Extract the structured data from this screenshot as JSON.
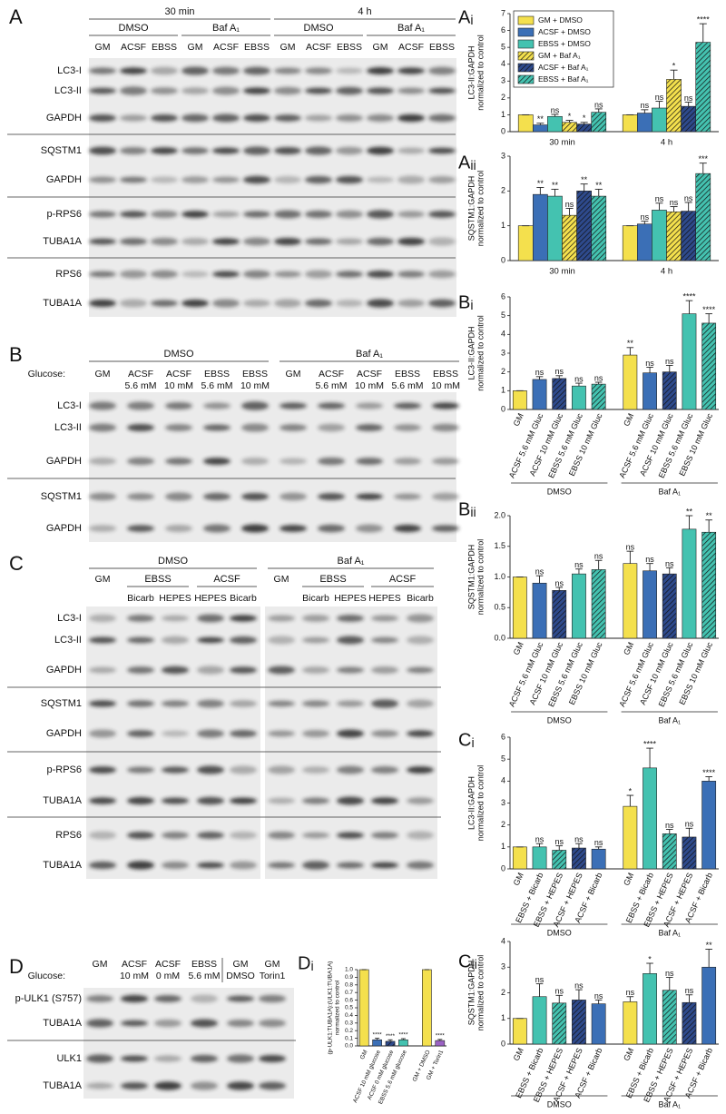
{
  "blots": {
    "A": {
      "letter": "A",
      "time": [
        "30 min",
        "4 h"
      ],
      "treatment": [
        "DMSO",
        "Baf A₁",
        "DMSO",
        "Baf A₁"
      ],
      "lanes": [
        "GM",
        "ACSF",
        "EBSS",
        "GM",
        "ACSF",
        "EBSS",
        "GM",
        "ACSF",
        "EBSS",
        "GM",
        "ACSF",
        "EBSS"
      ],
      "rows": [
        "LC3-I",
        "LC3-II",
        "GAPDH",
        "SQSTM1",
        "GAPDH",
        "p-RPS6",
        "TUBA1A",
        "RPS6",
        "TUBA1A"
      ]
    },
    "B": {
      "letter": "B",
      "treatment": [
        "DMSO",
        "Baf A₁"
      ],
      "glucose": "Glucose:",
      "lanes": [
        [
          "GM"
        ],
        [
          "ACSF",
          "5.6 mM"
        ],
        [
          "ACSF",
          "10 mM"
        ],
        [
          "EBSS",
          "5.6 mM"
        ],
        [
          "EBSS",
          "10 mM"
        ],
        [
          "GM"
        ],
        [
          "ACSF",
          "5.6 mM"
        ],
        [
          "ACSF",
          "10 mM"
        ],
        [
          "EBSS",
          "5.6 mM"
        ],
        [
          "EBSS",
          "10 mM"
        ]
      ],
      "rows": [
        "LC3-I",
        "LC3-II",
        "GAPDH",
        "SQSTM1",
        "GAPDH"
      ]
    },
    "C": {
      "letter": "C",
      "treatment": [
        "DMSO",
        "Baf A₁"
      ],
      "medium": [
        "EBSS",
        "ACSF",
        "EBSS",
        "ACSF"
      ],
      "lanes": [
        "GM",
        "Bicarb",
        "HEPES",
        "HEPES",
        "Bicarb",
        "GM",
        "Bicarb",
        "HEPES",
        "HEPES",
        "Bicarb"
      ],
      "rows": [
        "LC3-I",
        "LC3-II",
        "GAPDH",
        "SQSTM1",
        "GAPDH",
        "p-RPS6",
        "TUBA1A",
        "RPS6",
        "TUBA1A"
      ]
    },
    "D": {
      "letter": "D",
      "glucose": "Glucose:",
      "lanes": [
        [
          "GM"
        ],
        [
          "ACSF",
          "10 mM"
        ],
        [
          "ACSF",
          "0 mM"
        ],
        [
          "EBSS",
          "5.6 mM"
        ],
        [
          "GM",
          "DMSO"
        ],
        [
          "GM",
          "Torin1"
        ]
      ],
      "rows": [
        "p-ULK1 (S757)",
        "TUBA1A",
        "ULK1",
        "TUBA1A"
      ]
    }
  },
  "chart_data": [
    {
      "type": "grouped_bar",
      "title": "Aᵢ",
      "ylabel": [
        "LC3-II:GAPDH",
        "normalized to control"
      ],
      "ylim": [
        0,
        7
      ],
      "yticks": [
        0,
        1,
        2,
        3,
        4,
        5,
        6,
        7
      ],
      "legend": "top-left",
      "categories": [
        "30 min",
        "4 h"
      ],
      "series": [
        {
          "name": "GM + DMSO",
          "color": "#f4e04d",
          "hatched": false,
          "values": [
            1,
            1
          ],
          "errors": [
            0,
            0
          ],
          "significance": [
            null,
            null
          ]
        },
        {
          "name": "ACSF + DMSO",
          "color": "#3b6fb6",
          "hatched": false,
          "values": [
            0.4,
            1.1
          ],
          "errors": [
            0.1,
            0.2
          ],
          "significance": [
            "**",
            "ns"
          ]
        },
        {
          "name": "EBSS + DMSO",
          "color": "#44c2b0",
          "hatched": false,
          "values": [
            0.9,
            1.4
          ],
          "errors": [
            0.12,
            0.4
          ],
          "significance": [
            "ns",
            "ns"
          ]
        },
        {
          "name": "GM + Baf A₁",
          "color": "#f4e04d",
          "hatched": true,
          "values": [
            0.55,
            3.1
          ],
          "errors": [
            0.12,
            0.55
          ],
          "significance": [
            "*",
            "*"
          ]
        },
        {
          "name": "ACSF + Baf A₁",
          "color": "#2e4a8c",
          "hatched": true,
          "values": [
            0.45,
            1.5
          ],
          "errors": [
            0.1,
            0.25
          ],
          "significance": [
            "*",
            "ns"
          ]
        },
        {
          "name": "EBSS + Baf A₁",
          "color": "#44c2b0",
          "hatched": true,
          "values": [
            1.15,
            5.3
          ],
          "errors": [
            0.2,
            1.1
          ],
          "significance": [
            "ns",
            "****"
          ]
        }
      ]
    },
    {
      "type": "grouped_bar",
      "title": "Aᵢᵢ",
      "ylabel": [
        "SQSTM1:GAPDH",
        "normalized to control"
      ],
      "ylim": [
        0,
        3
      ],
      "yticks": [
        0,
        1,
        2,
        3
      ],
      "categories": [
        "30 min",
        "4 h"
      ],
      "series": [
        {
          "color": "#f4e04d",
          "hatched": false,
          "values": [
            1,
            1
          ],
          "errors": [
            0,
            0
          ],
          "significance": [
            null,
            null
          ]
        },
        {
          "color": "#3b6fb6",
          "hatched": false,
          "values": [
            1.9,
            1.05
          ],
          "errors": [
            0.2,
            0.08
          ],
          "significance": [
            "**",
            "ns"
          ]
        },
        {
          "color": "#44c2b0",
          "hatched": false,
          "values": [
            1.85,
            1.45
          ],
          "errors": [
            0.2,
            0.2
          ],
          "significance": [
            "**",
            "ns"
          ]
        },
        {
          "color": "#f4e04d",
          "hatched": true,
          "values": [
            1.3,
            1.4
          ],
          "errors": [
            0.2,
            0.15
          ],
          "significance": [
            "ns",
            "ns"
          ]
        },
        {
          "color": "#2e4a8c",
          "hatched": true,
          "values": [
            2.0,
            1.42
          ],
          "errors": [
            0.2,
            0.25
          ],
          "significance": [
            "**",
            "ns"
          ]
        },
        {
          "color": "#44c2b0",
          "hatched": true,
          "values": [
            1.85,
            2.5
          ],
          "errors": [
            0.2,
            0.3
          ],
          "significance": [
            "**",
            "***"
          ]
        }
      ]
    },
    {
      "type": "bar",
      "title": "Bᵢ",
      "ylabel": [
        "LC3-II:GAPDH",
        "normalized to control"
      ],
      "ylim": [
        0,
        6
      ],
      "yticks": [
        0,
        1,
        2,
        3,
        4,
        5,
        6
      ],
      "groups": [
        "DMSO",
        "Baf A₁"
      ],
      "categories": [
        "GM",
        "ACSF 5.6 mM Gluc",
        "ACSF 10 mM Gluc",
        "EBSS 5.6 mM Gluc",
        "EBSS 10 mM Gluc",
        "GM",
        "ACSF 5.6 mM Gluc",
        "ACSF 10 mM Gluc",
        "EBSS 5.6 mM Gluc",
        "EBSS 10 mM Gluc"
      ],
      "values": [
        1,
        1.6,
        1.65,
        1.25,
        1.35,
        2.9,
        1.95,
        2.0,
        5.1,
        4.6
      ],
      "errors": [
        0,
        0.15,
        0.15,
        0.15,
        0.1,
        0.4,
        0.3,
        0.35,
        0.7,
        0.5
      ],
      "significance": [
        null,
        "ns",
        "ns",
        "ns",
        "ns",
        "**",
        "ns",
        "ns",
        "****",
        "****"
      ],
      "colors": [
        "#f4e04d",
        "#3b6fb6",
        "#2e4a8c",
        "#44c2b0",
        "#44c2b0",
        "#f4e04d",
        "#3b6fb6",
        "#2e4a8c",
        "#44c2b0",
        "#44c2b0"
      ],
      "hatched": [
        false,
        false,
        true,
        false,
        true,
        false,
        false,
        true,
        false,
        true
      ]
    },
    {
      "type": "bar",
      "title": "Bᵢᵢ",
      "ylabel": [
        "SQSTM1:GAPDH",
        "normalized to control"
      ],
      "ylim": [
        0,
        2
      ],
      "yticks": [
        {
          "value": 0,
          "label": "0.0"
        },
        0.5,
        {
          "value": 1,
          "label": "1.0"
        },
        1.5,
        {
          "value": 2,
          "label": "2.0"
        }
      ],
      "groups": [
        "DMSO",
        "Baf A₁"
      ],
      "categories": [
        "GM",
        "ACSF 5.6 mM Gluc",
        "ACSF 10 mM Gluc",
        "EBSS 5.6 mM Gluc",
        "EBSS 10 mM Gluc",
        "GM",
        "ACSF 5.6 mM Gluc",
        "ACSF 10 mM Gluc",
        "EBSS 5.6 mM Gluc",
        "EBSS 10 mM Gluc"
      ],
      "values": [
        1,
        0.9,
        0.78,
        1.05,
        1.12,
        1.22,
        1.1,
        1.05,
        1.78,
        1.73
      ],
      "errors": [
        0,
        0.12,
        0.05,
        0.08,
        0.15,
        0.2,
        0.12,
        0.1,
        0.22,
        0.2
      ],
      "significance": [
        null,
        "ns",
        "ns",
        "ns",
        "ns",
        "ns",
        "ns",
        "ns",
        "**",
        "**"
      ],
      "colors": [
        "#f4e04d",
        "#3b6fb6",
        "#2e4a8c",
        "#44c2b0",
        "#44c2b0",
        "#f4e04d",
        "#3b6fb6",
        "#2e4a8c",
        "#44c2b0",
        "#44c2b0"
      ],
      "hatched": [
        false,
        false,
        true,
        false,
        true,
        false,
        false,
        true,
        false,
        true
      ]
    },
    {
      "type": "bar",
      "title": "Cᵢ",
      "ylabel": [
        "LC3-II:GAPDH",
        "normalized to control"
      ],
      "ylim": [
        0,
        6
      ],
      "yticks": [
        0,
        1,
        2,
        3,
        4,
        5,
        6
      ],
      "groups": [
        "DMSO",
        "Baf A₁"
      ],
      "categories": [
        "GM",
        "EBSS + Bicarb",
        "EBSS + HEPES",
        "ACSF + HEPES",
        "ACSF + Bicarb",
        "GM",
        "EBSS + Bicarb",
        "EBSS + HEPES",
        "ACSF + HEPES",
        "ACSF + Bicarb"
      ],
      "values": [
        1,
        1.0,
        0.85,
        0.95,
        0.9,
        2.85,
        4.6,
        1.6,
        1.45,
        4.0
      ],
      "errors": [
        0,
        0.15,
        0.2,
        0.2,
        0.1,
        0.5,
        0.9,
        0.2,
        0.4,
        0.2
      ],
      "significance": [
        null,
        "ns",
        "ns",
        "ns",
        "ns",
        "*",
        "****",
        "ns",
        "ns",
        "****"
      ],
      "colors": [
        "#f4e04d",
        "#44c2b0",
        "#44c2b0",
        "#2e4a8c",
        "#3b6fb6",
        "#f4e04d",
        "#44c2b0",
        "#44c2b0",
        "#2e4a8c",
        "#3b6fb6"
      ],
      "hatched": [
        false,
        false,
        true,
        true,
        false,
        false,
        false,
        true,
        true,
        false
      ]
    },
    {
      "type": "bar",
      "title": "Cᵢᵢ",
      "ylabel": [
        "SQSTM1:GAPDH",
        "normalized to control"
      ],
      "ylim": [
        0,
        4
      ],
      "yticks": [
        0,
        1,
        2,
        3,
        4
      ],
      "groups": [
        "DMSO",
        "Baf A₁"
      ],
      "categories": [
        "GM",
        "EBSS + Bicarb",
        "EBSS + HEPES",
        "ACSF + HEPES",
        "ACSF + Bicarb",
        "GM",
        "EBSS + Bicarb",
        "EBSS + HEPES",
        "ACSF + HEPES",
        "ACSF + Bicarb"
      ],
      "values": [
        1,
        1.85,
        1.6,
        1.72,
        1.57,
        1.65,
        2.75,
        2.1,
        1.62,
        3.0
      ],
      "errors": [
        0,
        0.5,
        0.3,
        0.4,
        0.15,
        0.2,
        0.4,
        0.5,
        0.3,
        0.7
      ],
      "significance": [
        null,
        "ns",
        "ns",
        "ns",
        "ns",
        "ns",
        "*",
        "ns",
        "ns",
        "**"
      ],
      "colors": [
        "#f4e04d",
        "#44c2b0",
        "#44c2b0",
        "#2e4a8c",
        "#3b6fb6",
        "#f4e04d",
        "#44c2b0",
        "#44c2b0",
        "#2e4a8c",
        "#3b6fb6"
      ],
      "hatched": [
        false,
        false,
        true,
        true,
        false,
        false,
        false,
        true,
        true,
        false
      ]
    },
    {
      "type": "bar",
      "title": "Dᵢ",
      "ylabel": [
        "(p-ULK1:TUBA1A):(ULK1:TUBA1A)",
        "normalized to control"
      ],
      "ylim": [
        0,
        1
      ],
      "yticks": [
        {
          "value": 0,
          "label": "0.0"
        },
        0.1,
        0.2,
        0.3,
        0.4,
        0.5,
        0.6,
        0.7,
        0.8,
        0.9,
        {
          "value": 1,
          "label": "1.0"
        }
      ],
      "categories": [
        "GM",
        "ACSF 10 mM glucose",
        "ACSF 0 mM glucose",
        "EBSS 5.6 mM glucose",
        "GM + DMSO",
        "GM + Torin1"
      ],
      "values": [
        1,
        0.08,
        0.06,
        0.08,
        1,
        0.07
      ],
      "errors": [
        0,
        0.02,
        0.02,
        0.015,
        0,
        0.015
      ],
      "significance": [
        null,
        "****",
        "****",
        "****",
        null,
        "****"
      ],
      "colors": [
        "#f4e04d",
        "#3b6fb6",
        "#2e4a8c",
        "#44c2b0",
        "#f4e04d",
        "#9b62c4"
      ],
      "hatched": [
        false,
        false,
        true,
        false,
        false,
        false
      ]
    }
  ]
}
